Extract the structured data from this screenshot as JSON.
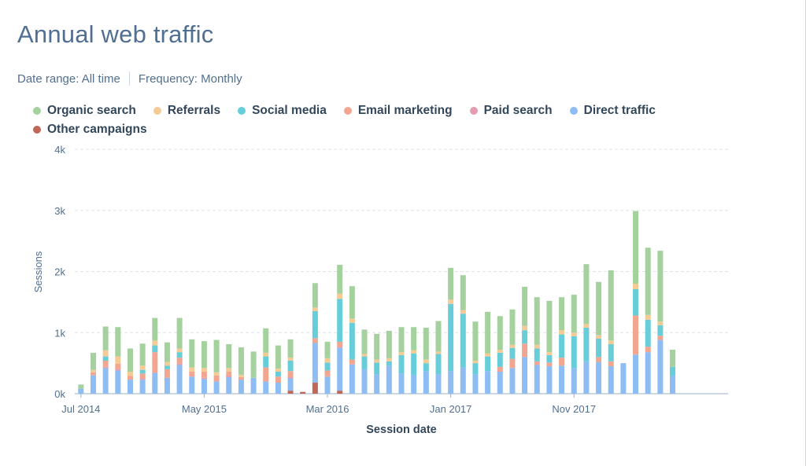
{
  "title": "Annual web traffic",
  "filters": {
    "date_range": "Date range: All time",
    "frequency": "Frequency: Monthly"
  },
  "colors": {
    "organic": "#a4d19e",
    "referrals": "#f4ca95",
    "social": "#66cdd9",
    "email": "#f2a690",
    "paid": "#e39cb1",
    "direct": "#8dbdf3",
    "other": "#c0675a"
  },
  "chart_data": {
    "type": "bar",
    "stacked": true,
    "title": "Annual web traffic",
    "xlabel": "Session date",
    "ylabel": "Sessions",
    "ylim": [
      0,
      4000
    ],
    "y_ticks": [
      "0k",
      "1k",
      "2k",
      "3k",
      "4k"
    ],
    "x_tick_labels": [
      {
        "index": 0,
        "label": "Jul 2014"
      },
      {
        "index": 10,
        "label": "May 2015"
      },
      {
        "index": 20,
        "label": "Mar 2016"
      },
      {
        "index": 30,
        "label": "Jan 2017"
      },
      {
        "index": 40,
        "label": "Nov 2017"
      }
    ],
    "categories": [
      "Jul 2014",
      "Aug 2014",
      "Sep 2014",
      "Oct 2014",
      "Nov 2014",
      "Dec 2014",
      "Jan 2015",
      "Feb 2015",
      "Mar 2015",
      "Apr 2015",
      "May 2015",
      "Jun 2015",
      "Jul 2015",
      "Aug 2015",
      "Sep 2015",
      "Oct 2015",
      "Nov 2015",
      "Dec 2015",
      "Jan 2016",
      "Feb 2016",
      "Mar 2016",
      "Apr 2016",
      "May 2016",
      "Jun 2016",
      "Jul 2016",
      "Aug 2016",
      "Sep 2016",
      "Oct 2016",
      "Nov 2016",
      "Dec 2016",
      "Jan 2017",
      "Feb 2017",
      "Mar 2017",
      "Apr 2017",
      "May 2017",
      "Jun 2017",
      "Jul 2017",
      "Aug 2017",
      "Sep 2017",
      "Oct 2017",
      "Nov 2017",
      "Dec 2017",
      "Jan 2018",
      "Feb 2018",
      "Mar 2018",
      "Apr 2018",
      "May 2018",
      "Jun 2018",
      "Jul 2018",
      "Aug 2018",
      "Sep 2018",
      "Oct 2018",
      "Nov 2018"
    ],
    "series": [
      {
        "name": "Other campaigns",
        "key": "other",
        "values": [
          0,
          0,
          0,
          0,
          0,
          0,
          0,
          0,
          0,
          0,
          0,
          0,
          0,
          0,
          0,
          0,
          0,
          50,
          30,
          180,
          0,
          50,
          0,
          0,
          0,
          0,
          0,
          0,
          0,
          0,
          0,
          0,
          0,
          0,
          0,
          0,
          0,
          0,
          0,
          0,
          0,
          0,
          0,
          0,
          0,
          0,
          0,
          0,
          0,
          0,
          0,
          0,
          0
        ]
      },
      {
        "name": "Direct traffic",
        "key": "direct",
        "values": [
          80,
          300,
          420,
          380,
          230,
          230,
          340,
          260,
          470,
          280,
          240,
          200,
          270,
          230,
          260,
          200,
          180,
          200,
          0,
          650,
          280,
          700,
          480,
          400,
          320,
          460,
          330,
          310,
          370,
          320,
          370,
          430,
          320,
          370,
          360,
          420,
          600,
          470,
          450,
          460,
          420,
          530,
          520,
          450,
          500,
          640,
          680,
          880,
          290,
          0,
          0,
          0,
          0
        ]
      },
      {
        "name": "Paid search",
        "key": "paid",
        "values": [
          0,
          0,
          20,
          20,
          0,
          20,
          0,
          0,
          20,
          0,
          20,
          0,
          20,
          0,
          0,
          0,
          0,
          20,
          0,
          0,
          0,
          20,
          0,
          0,
          0,
          0,
          0,
          0,
          0,
          0,
          0,
          0,
          0,
          0,
          0,
          0,
          0,
          0,
          0,
          0,
          0,
          0,
          0,
          0,
          0,
          0,
          0,
          0,
          0,
          0,
          0,
          0,
          0
        ]
      },
      {
        "name": "Email marketing",
        "key": "email",
        "values": [
          0,
          50,
          100,
          90,
          60,
          80,
          340,
          140,
          100,
          80,
          100,
          100,
          70,
          40,
          0,
          230,
          100,
          100,
          0,
          80,
          100,
          80,
          80,
          0,
          0,
          0,
          0,
          0,
          0,
          0,
          0,
          0,
          0,
          0,
          80,
          150,
          220,
          60,
          60,
          130,
          0,
          0,
          80,
          80,
          0,
          640,
          90,
          70,
          0,
          0,
          0,
          0,
          0
        ]
      },
      {
        "name": "Social media",
        "key": "social",
        "values": [
          0,
          0,
          70,
          0,
          0,
          60,
          110,
          60,
          90,
          0,
          0,
          0,
          0,
          0,
          0,
          180,
          80,
          170,
          0,
          440,
          130,
          700,
          600,
          210,
          190,
          70,
          300,
          350,
          130,
          330,
          1100,
          880,
          180,
          240,
          230,
          180,
          220,
          210,
          120,
          380,
          520,
          550,
          300,
          280,
          0,
          430,
          440,
          170,
          150,
          0,
          0,
          0,
          0
        ]
      },
      {
        "name": "Referrals",
        "key": "referrals",
        "values": [
          0,
          40,
          100,
          120,
          70,
          70,
          80,
          60,
          60,
          70,
          60,
          50,
          60,
          40,
          0,
          60,
          50,
          50,
          0,
          60,
          70,
          90,
          70,
          40,
          50,
          50,
          50,
          50,
          60,
          40,
          70,
          60,
          40,
          50,
          50,
          50,
          70,
          60,
          50,
          70,
          60,
          60,
          60,
          60,
          0,
          90,
          80,
          60,
          0,
          0,
          0,
          0,
          0
        ]
      },
      {
        "name": "Organic search",
        "key": "organic",
        "values": [
          70,
          280,
          390,
          480,
          380,
          360,
          370,
          320,
          500,
          460,
          440,
          530,
          390,
          450,
          430,
          400,
          380,
          300,
          0,
          400,
          270,
          470,
          530,
          400,
          420,
          450,
          410,
          380,
          520,
          500,
          520,
          570,
          640,
          680,
          550,
          580,
          640,
          780,
          840,
          540,
          620,
          980,
          870,
          1150,
          0,
          1190,
          1100,
          1160,
          280,
          0,
          0,
          0,
          0
        ]
      }
    ],
    "legend_position": "top-left"
  },
  "legend": [
    {
      "key": "organic",
      "label": "Organic search"
    },
    {
      "key": "referrals",
      "label": "Referrals"
    },
    {
      "key": "social",
      "label": "Social media"
    },
    {
      "key": "email",
      "label": "Email marketing"
    },
    {
      "key": "paid",
      "label": "Paid search"
    },
    {
      "key": "direct",
      "label": "Direct traffic"
    },
    {
      "key": "other",
      "label": "Other campaigns"
    }
  ]
}
